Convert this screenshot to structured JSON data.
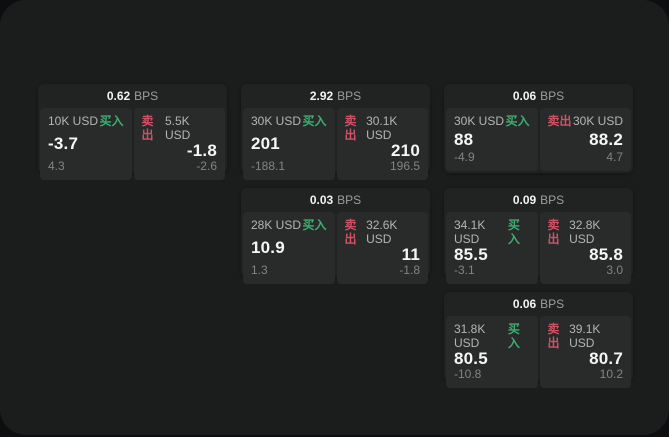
{
  "labels": {
    "bps_unit": "BPS",
    "buy": "买入",
    "sell": "卖出"
  },
  "colors": {
    "backdrop": "#0d0e0f",
    "canvas": "#1b1d1d",
    "card": "#212323",
    "panel": "#292b2b",
    "buy_green": "#3fae6f",
    "sell_red": "#d05264",
    "text_primary": "#f5f6f6",
    "text_secondary": "#b3b6b6",
    "text_dim": "#808484"
  },
  "cards": [
    {
      "bps": "0.62",
      "buy": {
        "size": "10K USD",
        "price": "-3.7",
        "delta": "4.3"
      },
      "sell": {
        "size": "5.5K USD",
        "price": "-1.8",
        "delta": "-2.6"
      }
    },
    {
      "bps": "2.92",
      "buy": {
        "size": "30K USD",
        "price": "201",
        "delta": "-188.1"
      },
      "sell": {
        "size": "30.1K USD",
        "price": "210",
        "delta": "196.5"
      }
    },
    {
      "bps": "0.06",
      "buy": {
        "size": "30K USD",
        "price": "88",
        "delta": "-4.9"
      },
      "sell": {
        "size": "30K USD",
        "price": "88.2",
        "delta": "4.7"
      }
    },
    {
      "bps": "0.03",
      "buy": {
        "size": "28K USD",
        "price": "10.9",
        "delta": "1.3"
      },
      "sell": {
        "size": "32.6K USD",
        "price": "11",
        "delta": "-1.8"
      }
    },
    {
      "bps": "0.09",
      "buy": {
        "size": "34.1K USD",
        "price": "85.5",
        "delta": "-3.1"
      },
      "sell": {
        "size": "32.8K USD",
        "price": "85.8",
        "delta": "3.0"
      }
    },
    {
      "bps": "0.06",
      "buy": {
        "size": "31.8K USD",
        "price": "80.5",
        "delta": "-10.8"
      },
      "sell": {
        "size": "39.1K USD",
        "price": "80.7",
        "delta": "10.2"
      }
    }
  ]
}
